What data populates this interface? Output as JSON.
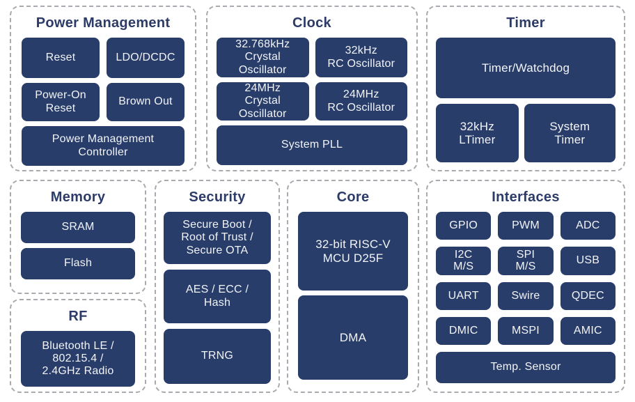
{
  "colors": {
    "block": "#293d6b",
    "title": "#2c3b68",
    "block_text": "#f2f4f7",
    "border": "#a7aaae",
    "background": "#ffffff"
  },
  "sections": {
    "power": {
      "title": "Power Management",
      "blocks": {
        "reset": "Reset",
        "ldo_dcdc": "LDO/DCDC",
        "power_on_reset": "Power-On\nReset",
        "brown_out": "Brown Out",
        "pmc": "Power Management\nController"
      }
    },
    "clock": {
      "title": "Clock",
      "blocks": {
        "xtal_32768": "32.768kHz\nCrystal\nOscillator",
        "rc_32k": "32kHz\nRC Oscillator",
        "xtal_24m": "24MHz\nCrystal\nOscillator",
        "rc_24m": "24MHz\nRC Oscillator",
        "system_pll": "System PLL"
      }
    },
    "timer": {
      "title": "Timer",
      "blocks": {
        "timer_watchdog": "Timer/Watchdog",
        "ltimer_32k": "32kHz\nLTimer",
        "system_timer": "System\nTimer"
      }
    },
    "memory": {
      "title": "Memory",
      "blocks": {
        "sram": "SRAM",
        "flash": "Flash"
      }
    },
    "rf": {
      "title": "RF",
      "blocks": {
        "radio": "Bluetooth LE /\n802.15.4 /\n2.4GHz Radio"
      }
    },
    "security": {
      "title": "Security",
      "blocks": {
        "secure_boot": "Secure Boot /\nRoot of Trust /\nSecure OTA",
        "aes_ecc_hash": "AES / ECC /\nHash",
        "trng": "TRNG"
      }
    },
    "core": {
      "title": "Core",
      "blocks": {
        "riscv_mcu": "32-bit RISC-V\nMCU D25F",
        "dma": "DMA"
      }
    },
    "interfaces": {
      "title": "Interfaces",
      "blocks": {
        "gpio": "GPIO",
        "pwm": "PWM",
        "adc": "ADC",
        "i2c": "I2C\nM/S",
        "spi": "SPI\nM/S",
        "usb": "USB",
        "uart": "UART",
        "swire": "Swire",
        "qdec": "QDEC",
        "dmic": "DMIC",
        "mspi": "MSPI",
        "amic": "AMIC",
        "temp_sensor": "Temp. Sensor"
      }
    }
  }
}
